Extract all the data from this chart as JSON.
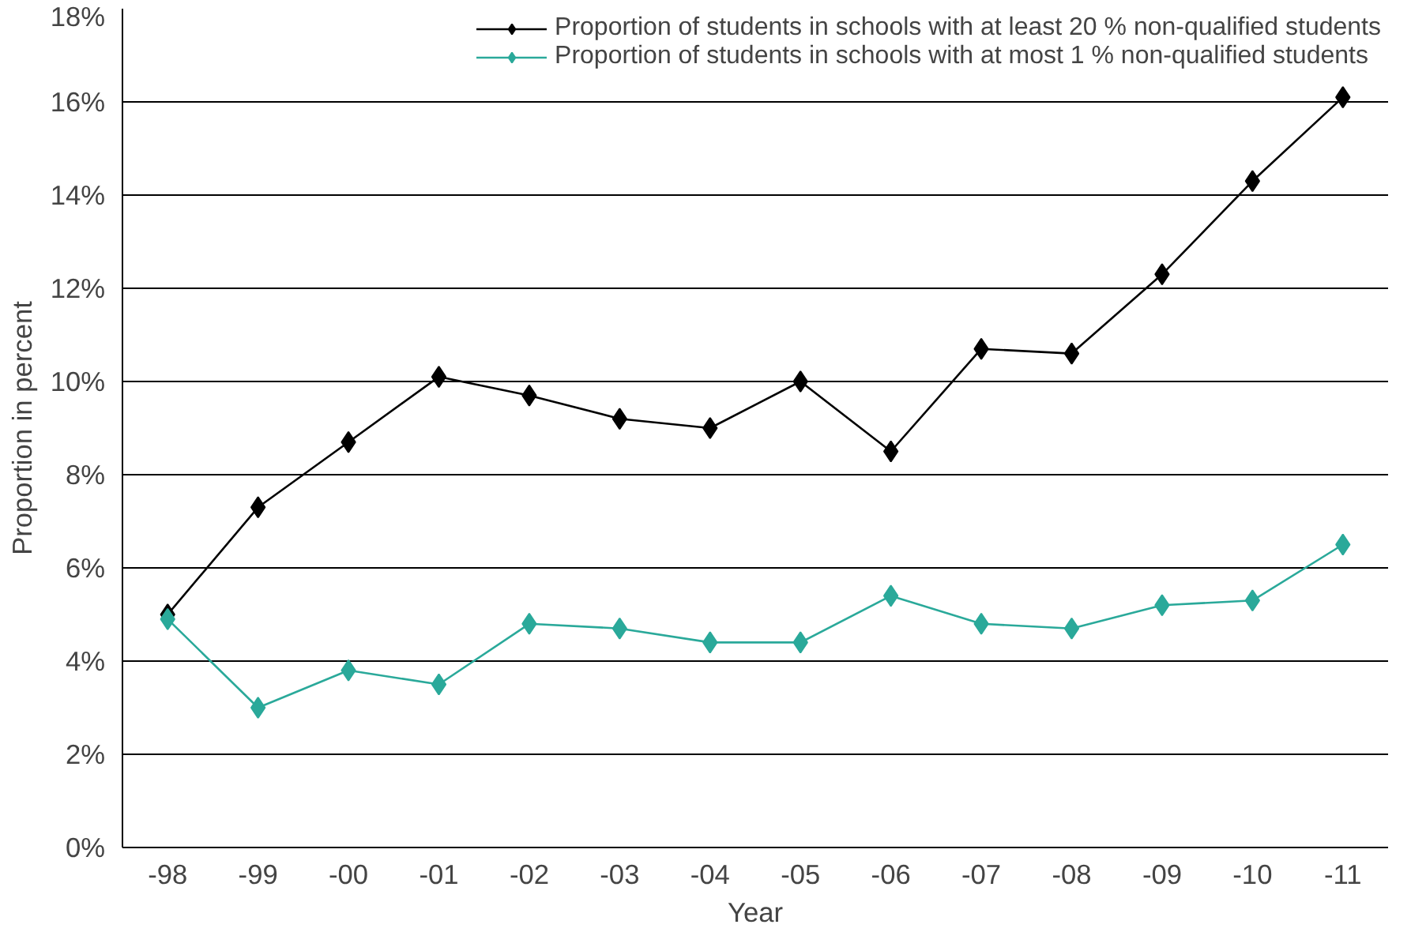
{
  "chart_data": {
    "type": "line",
    "xlabel": "Year",
    "ylabel": "Proportion in percent",
    "categories": [
      "-98",
      "-99",
      "-00",
      "-01",
      "-02",
      "-03",
      "-04",
      "-05",
      "-06",
      "-07",
      "-08",
      "-09",
      "-10",
      "-11"
    ],
    "series": [
      {
        "name": "Proportion of students in schools with at least 20 % non-qualified students",
        "color": "#000000",
        "values": [
          5.0,
          7.3,
          8.7,
          10.1,
          9.7,
          9.2,
          9.0,
          10.0,
          8.5,
          10.7,
          10.6,
          12.3,
          14.3,
          16.1
        ]
      },
      {
        "name": "Proportion of students in schools with at most 1 % non-qualified students",
        "color": "#2aa99a",
        "values": [
          4.9,
          3.0,
          3.8,
          3.5,
          4.8,
          4.7,
          4.4,
          4.4,
          5.4,
          4.8,
          4.7,
          5.2,
          5.3,
          6.5
        ]
      }
    ],
    "ylim": [
      0,
      18
    ],
    "yticks": [
      {
        "value": 0,
        "label": "0%"
      },
      {
        "value": 2,
        "label": "2%"
      },
      {
        "value": 4,
        "label": "4%"
      },
      {
        "value": 6,
        "label": "6%"
      },
      {
        "value": 8,
        "label": "8%"
      },
      {
        "value": 10,
        "label": "10%"
      },
      {
        "value": 12,
        "label": "12%"
      },
      {
        "value": 14,
        "label": "14%"
      },
      {
        "value": 16,
        "label": "16%"
      },
      {
        "value": 18,
        "label": "18%"
      }
    ],
    "grid": "y",
    "legend": "top",
    "marker": "diamond",
    "line_style": "solid"
  }
}
